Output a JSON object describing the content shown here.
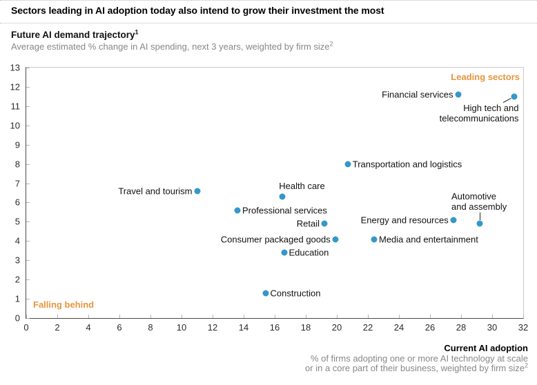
{
  "chart_data": {
    "type": "scatter",
    "title": "Sectors leading in AI adoption today also intend to grow their investment the most",
    "y_axis": {
      "title": "Future AI demand trajectory",
      "title_footnote": "1",
      "subtitle": "Average estimated % change in AI spending, next 3 years, weighted by firm size",
      "subtitle_footnote": "2",
      "min": 0,
      "max": 13,
      "ticks": [
        0,
        1,
        2,
        3,
        4,
        5,
        6,
        7,
        8,
        9,
        10,
        11,
        12,
        13
      ]
    },
    "x_axis": {
      "title": "Current AI adoption",
      "subtitle_line1": "% of firms adopting one or more AI technology at scale",
      "subtitle_line2": "or in a core part of their business, weighted by firm size",
      "subtitle_footnote": "2",
      "min": 0,
      "max": 32,
      "ticks": [
        0,
        2,
        4,
        6,
        8,
        10,
        12,
        14,
        16,
        18,
        20,
        22,
        24,
        26,
        28,
        30,
        32
      ]
    },
    "annotations": {
      "leading_sectors": "Leading sectors",
      "falling_behind": "Falling behind"
    },
    "points": [
      {
        "label": "Financial services",
        "x": 27.8,
        "y": 11.6,
        "label_side": "left"
      },
      {
        "label": "High tech and telecommunications",
        "label_lines": [
          "High tech and",
          "telecommunications"
        ],
        "x": 31.4,
        "y": 11.5,
        "label_side": "below-connector"
      },
      {
        "label": "Transportation and logistics",
        "x": 20.7,
        "y": 8.0,
        "label_side": "right"
      },
      {
        "label": "Travel and tourism",
        "x": 11.0,
        "y": 6.6,
        "label_side": "left"
      },
      {
        "label": "Health care",
        "x": 16.5,
        "y": 6.3,
        "label_side": "above"
      },
      {
        "label": "Professional services",
        "x": 13.6,
        "y": 5.6,
        "label_side": "right"
      },
      {
        "label": "Retail",
        "x": 19.2,
        "y": 4.9,
        "label_side": "left"
      },
      {
        "label": "Energy and resources",
        "x": 27.5,
        "y": 5.1,
        "label_side": "left"
      },
      {
        "label": "Automotive and assembly",
        "label_lines": [
          "Automotive",
          "and assembly"
        ],
        "x": 29.2,
        "y": 4.9,
        "label_side": "above-connector"
      },
      {
        "label": "Consumer packaged goods",
        "x": 19.9,
        "y": 4.1,
        "label_side": "left"
      },
      {
        "label": "Media and entertainment",
        "x": 22.4,
        "y": 4.1,
        "label_side": "right"
      },
      {
        "label": "Education",
        "x": 16.6,
        "y": 3.4,
        "label_side": "right"
      },
      {
        "label": "Construction",
        "x": 15.4,
        "y": 1.3,
        "label_side": "right"
      }
    ],
    "colors": {
      "dot": "#3598c8",
      "accent_orange": "#e8953c"
    },
    "legend": "none",
    "grid": false
  }
}
